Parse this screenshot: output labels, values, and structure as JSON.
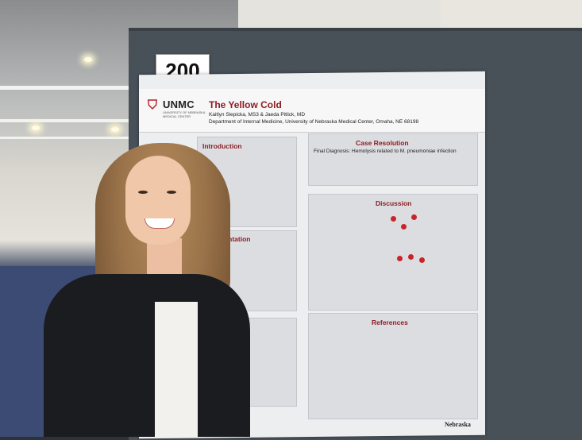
{
  "booth_number": "200",
  "poster": {
    "logo_text": "UNMC",
    "logo_subtext": "UNIVERSITY OF NEBRASKA MEDICAL CENTER",
    "title": "The Yellow Cold",
    "authors": "Kaitlyn Slepicka, MS3 & Jaeda Pitlick, MD",
    "department": "Department of Internal Medicine, University of Nebraska Medical Center, Omaha, NE 68198",
    "sections": {
      "introduction": "Introduction",
      "case_resolution": "Case Resolution",
      "final_diagnosis": "Final Diagnosis: Hemolysis related to M. pneumoniae infection",
      "discussion": "Discussion",
      "presentation": "Presentation",
      "references": "References"
    },
    "footer_logo": "Nebraska"
  },
  "colors": {
    "accent_red": "#8e1c22",
    "board": "#485058",
    "poster_bg": "#edeef0"
  }
}
